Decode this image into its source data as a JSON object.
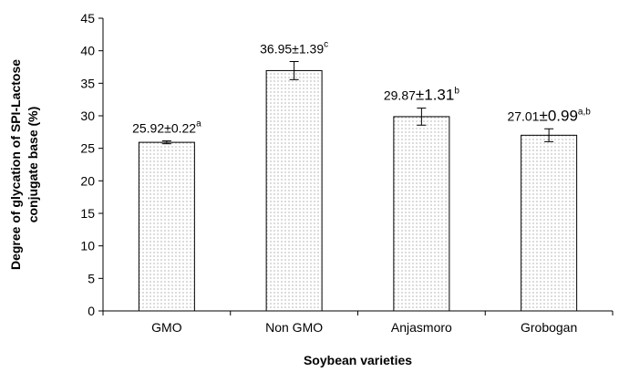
{
  "chart_data": {
    "type": "bar",
    "title": "",
    "xlabel": "Soybean varieties",
    "ylabel": "Degree of glycation of SPI-Lactose conjugate base (%)",
    "ylabel_lines": [
      "Degree of glycation of SPI-Lactose",
      "conjugate base (%)"
    ],
    "ylim": [
      0,
      45
    ],
    "yticks": [
      0,
      5,
      10,
      15,
      20,
      25,
      30,
      35,
      40,
      45
    ],
    "ytick_labels": [
      "0",
      "5",
      "10",
      "15",
      "20",
      "25",
      "30",
      "35",
      "40",
      "45"
    ],
    "grid": false,
    "legend": "none",
    "bar_fill": "dotted",
    "categories": [
      "GMO",
      "Non GMO",
      "Anjasmoro",
      "Grobogan"
    ],
    "values": [
      25.92,
      36.95,
      29.87,
      27.01
    ],
    "errors": [
      0.22,
      1.39,
      1.31,
      0.99
    ],
    "labels": [
      {
        "value": "25.92",
        "sep": "±",
        "err": "0.22",
        "sup": "a",
        "style": "plain"
      },
      {
        "value": "36.95",
        "sep": "±",
        "err": "1.39",
        "sup": "c",
        "style": "plain"
      },
      {
        "value": "29.87",
        "sep": "±",
        "err": "1.31",
        "sup": "b",
        "style": "big"
      },
      {
        "value": "27.01",
        "sep": "±",
        "err": "0.99",
        "sup": "a,b",
        "style": "big"
      }
    ]
  }
}
